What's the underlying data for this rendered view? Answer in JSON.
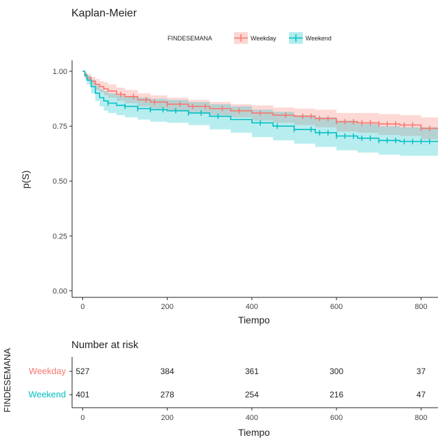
{
  "chart_data": {
    "type": "line",
    "title": "Kaplan-Meier",
    "xlabel": "Tiempo",
    "ylabel": "p(S)",
    "xlim": [
      -25,
      840
    ],
    "ylim": [
      -0.03,
      1.05
    ],
    "xticks": [
      0,
      200,
      400,
      600,
      800
    ],
    "yticks": [
      0.0,
      0.25,
      0.5,
      0.75,
      1.0
    ],
    "ytick_labels": [
      "0.00",
      "0.25",
      "0.50",
      "0.75",
      "1.00"
    ],
    "grid": false,
    "legend": {
      "title": "FINDESEMANA",
      "placement": "top"
    },
    "series": [
      {
        "name": "Weekday",
        "color": "#f8766d",
        "x": [
          0,
          5,
          10,
          20,
          30,
          40,
          50,
          60,
          80,
          100,
          130,
          160,
          200,
          250,
          300,
          350,
          400,
          450,
          500,
          550,
          600,
          650,
          700,
          750,
          800,
          840
        ],
        "y": [
          1.0,
          0.985,
          0.97,
          0.955,
          0.94,
          0.93,
          0.92,
          0.91,
          0.895,
          0.885,
          0.87,
          0.86,
          0.85,
          0.84,
          0.83,
          0.82,
          0.81,
          0.8,
          0.795,
          0.785,
          0.77,
          0.765,
          0.76,
          0.755,
          0.74,
          0.74
        ],
        "lower": [
          1.0,
          0.975,
          0.955,
          0.935,
          0.915,
          0.905,
          0.89,
          0.88,
          0.865,
          0.855,
          0.84,
          0.83,
          0.82,
          0.81,
          0.8,
          0.79,
          0.775,
          0.765,
          0.755,
          0.745,
          0.725,
          0.72,
          0.71,
          0.705,
          0.69,
          0.69
        ],
        "upper": [
          1.0,
          0.995,
          0.985,
          0.975,
          0.965,
          0.955,
          0.95,
          0.94,
          0.925,
          0.915,
          0.9,
          0.89,
          0.88,
          0.87,
          0.86,
          0.85,
          0.845,
          0.835,
          0.83,
          0.825,
          0.81,
          0.81,
          0.805,
          0.8,
          0.79,
          0.79
        ],
        "censor_x": [
          90,
          120,
          150,
          170,
          200,
          230,
          260,
          290,
          330,
          370,
          420,
          480,
          520,
          540,
          560,
          580,
          600,
          620,
          640,
          660,
          680,
          700,
          720,
          740,
          760,
          780,
          800,
          820
        ]
      },
      {
        "name": "Weekend",
        "color": "#00bfc4",
        "x": [
          0,
          5,
          10,
          20,
          30,
          40,
          50,
          60,
          80,
          100,
          130,
          160,
          200,
          250,
          300,
          350,
          400,
          450,
          500,
          550,
          600,
          650,
          700,
          750,
          800,
          840
        ],
        "y": [
          1.0,
          0.98,
          0.96,
          0.93,
          0.9,
          0.88,
          0.865,
          0.855,
          0.845,
          0.84,
          0.83,
          0.825,
          0.82,
          0.81,
          0.795,
          0.78,
          0.765,
          0.75,
          0.735,
          0.72,
          0.705,
          0.695,
          0.685,
          0.68,
          0.68,
          0.68
        ],
        "lower": [
          1.0,
          0.965,
          0.94,
          0.9,
          0.865,
          0.84,
          0.82,
          0.81,
          0.8,
          0.79,
          0.78,
          0.77,
          0.765,
          0.755,
          0.735,
          0.72,
          0.7,
          0.685,
          0.67,
          0.655,
          0.64,
          0.63,
          0.62,
          0.615,
          0.615,
          0.615
        ],
        "upper": [
          1.0,
          0.995,
          0.98,
          0.96,
          0.935,
          0.92,
          0.91,
          0.9,
          0.89,
          0.885,
          0.88,
          0.875,
          0.87,
          0.86,
          0.85,
          0.84,
          0.825,
          0.815,
          0.8,
          0.79,
          0.775,
          0.76,
          0.75,
          0.745,
          0.745,
          0.745
        ],
        "censor_x": [
          60,
          100,
          130,
          160,
          190,
          220,
          250,
          280,
          320,
          420,
          460,
          500,
          540,
          560,
          580,
          600,
          620,
          640,
          660,
          680,
          700,
          720,
          740,
          760,
          780,
          800,
          820
        ]
      }
    ],
    "risk_table": {
      "title": "Number at risk",
      "facet_label": "FINDESEMANA",
      "xlabel": "Tiempo",
      "times": [
        0,
        200,
        400,
        600,
        800
      ],
      "rows": [
        {
          "label": "Weekday",
          "color": "#f8766d",
          "counts": [
            "527",
            "384",
            "361",
            "300",
            "37"
          ]
        },
        {
          "label": "Weekend",
          "color": "#00bfc4",
          "counts": [
            "401",
            "278",
            "254",
            "216",
            "47"
          ]
        }
      ]
    }
  }
}
